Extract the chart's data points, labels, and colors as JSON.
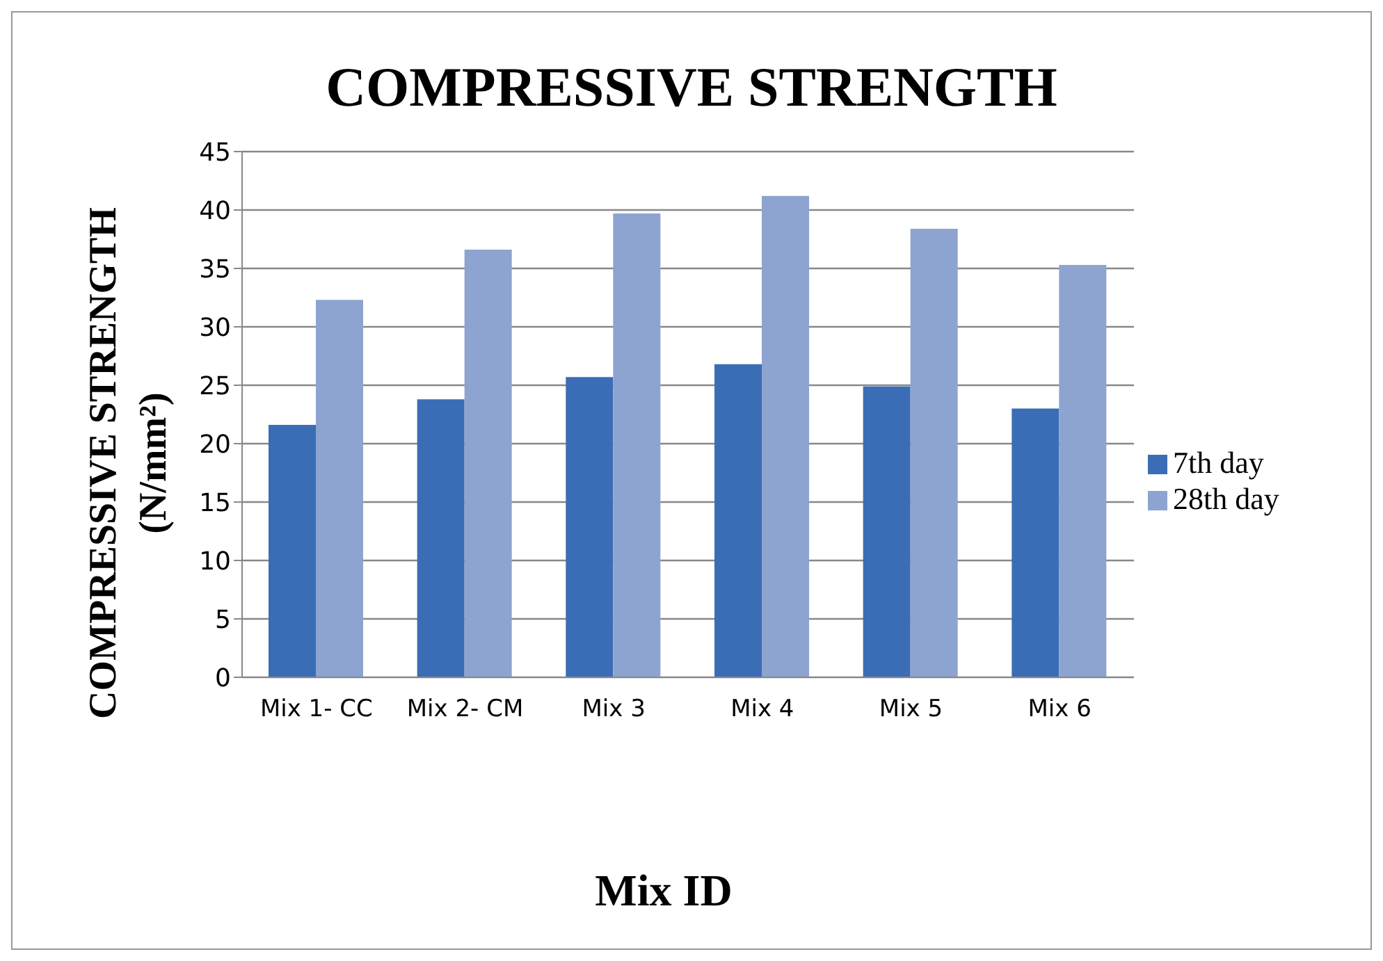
{
  "chart_data": {
    "type": "bar",
    "title": "COMPRESSIVE STRENGTH",
    "xlabel": "Mix ID",
    "ylabel": "COMPRESSIVE STRENGTH (N/mm²)",
    "categories": [
      "Mix 1- CC",
      "Mix 2- CM",
      "Mix 3",
      "Mix 4",
      "Mix 5",
      "Mix 6"
    ],
    "series": [
      {
        "name": "7th day",
        "color": "#3a6db5",
        "values": [
          21.6,
          23.8,
          25.7,
          26.8,
          24.9,
          23.0
        ]
      },
      {
        "name": "28th day",
        "color": "#8da4d0",
        "values": [
          32.3,
          36.6,
          39.7,
          41.2,
          38.4,
          35.3
        ]
      }
    ],
    "ylim": [
      0,
      45
    ],
    "yticks": [
      0,
      5,
      10,
      15,
      20,
      25,
      30,
      35,
      40,
      45
    ],
    "grid": "y",
    "legend": "right"
  }
}
